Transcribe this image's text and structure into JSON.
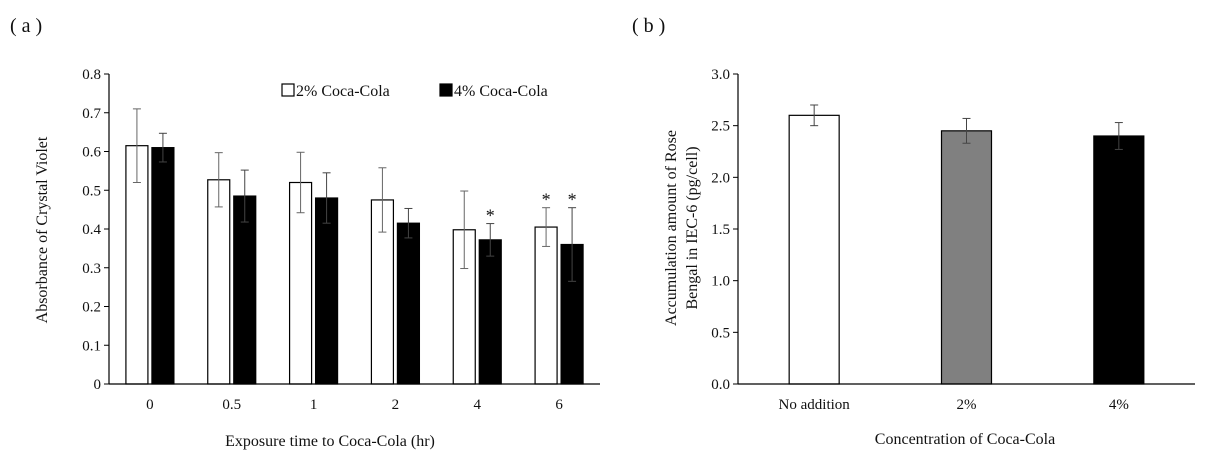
{
  "chart_data": [
    {
      "panel": "( a )",
      "type": "bar",
      "title": "",
      "xlabel": "Exposure time to Coca-Cola (hr)",
      "ylabel": "Absorbance of Crystal Violet",
      "ylim": [
        0,
        0.8
      ],
      "yticks": [
        "0",
        "0.1",
        "0.2",
        "0.3",
        "0.4",
        "0.5",
        "0.6",
        "0.7",
        "0.8"
      ],
      "categories": [
        "0",
        "0.5",
        "1",
        "2",
        "4",
        "6"
      ],
      "legend_position": "top-right",
      "grid": false,
      "series": [
        {
          "name": "2% Coca-Cola",
          "color": "#ffffff",
          "values": [
            0.615,
            0.527,
            0.52,
            0.475,
            0.398,
            0.405
          ],
          "errors": [
            0.095,
            0.07,
            0.078,
            0.083,
            0.1,
            0.05
          ],
          "significant": [
            false,
            false,
            false,
            false,
            false,
            true
          ]
        },
        {
          "name": "4% Coca-Cola",
          "color": "#000000",
          "values": [
            0.61,
            0.485,
            0.48,
            0.415,
            0.372,
            0.36
          ],
          "errors": [
            0.037,
            0.067,
            0.065,
            0.038,
            0.042,
            0.095
          ],
          "significant": [
            false,
            false,
            false,
            false,
            true,
            true
          ]
        }
      ],
      "annotation_symbol": "*"
    },
    {
      "panel": "( b )",
      "type": "bar",
      "title": "",
      "xlabel": "Concentration of Coca-Cola",
      "ylabel_lines": [
        "Accumulation amount of Rose",
        "Bengal in IEC-6 (pg/cell)"
      ],
      "ylim": [
        0,
        3.0
      ],
      "yticks": [
        "0.0",
        "0.5",
        "1.0",
        "1.5",
        "2.0",
        "2.5",
        "3.0"
      ],
      "categories": [
        "No addition",
        "2%",
        "4%"
      ],
      "grid": false,
      "values": [
        2.6,
        2.45,
        2.4
      ],
      "errors": [
        0.1,
        0.12,
        0.13
      ],
      "colors": [
        "#ffffff",
        "#808080",
        "#000000"
      ]
    }
  ]
}
